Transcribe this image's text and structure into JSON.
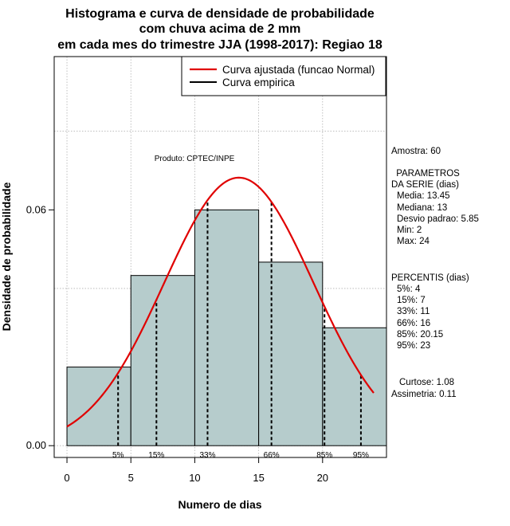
{
  "chart_data": {
    "type": "histogram",
    "title_lines": [
      "Histograma e curva de densidade de probabilidade",
      "com chuva acima de 2 mm",
      "em cada mes do trimestre JJA (1998-2017): Regiao 18"
    ],
    "xlabel": "Numero de dias",
    "ylabel": "Densidade de probabilidade",
    "xlim": [
      -1,
      25
    ],
    "ylim": [
      -0.003,
      0.099
    ],
    "x_ticks": [
      0,
      5,
      10,
      15,
      20
    ],
    "y_ticks": [
      0.0,
      0.06
    ],
    "y_tick_labels": [
      "0.00",
      "0.06"
    ],
    "grid_y": [
      0.0,
      0.04,
      0.08
    ],
    "grid_x": [
      0,
      5,
      10,
      15,
      20
    ],
    "bins": [
      {
        "x0": 0,
        "x1": 5,
        "density": 0.02
      },
      {
        "x0": 5,
        "x1": 10,
        "density": 0.0433
      },
      {
        "x0": 10,
        "x1": 15,
        "density": 0.06
      },
      {
        "x0": 15,
        "x1": 20,
        "density": 0.0467
      },
      {
        "x0": 20,
        "x1": 25,
        "density": 0.03
      }
    ],
    "bar_color": "#b6cccc",
    "normal_curve": {
      "mean": 13.45,
      "sd": 5.85,
      "x_range": [
        0,
        24
      ],
      "color": "#e00000"
    },
    "percentile_lines": [
      {
        "label": "5%",
        "value": 4
      },
      {
        "label": "15%",
        "value": 7
      },
      {
        "label": "33%",
        "value": 11
      },
      {
        "label": "66%",
        "value": 16
      },
      {
        "label": "85%",
        "value": 20.15
      },
      {
        "label": "95%",
        "value": 23
      }
    ],
    "legend": {
      "position": "top-right",
      "entries": [
        {
          "label": "Curva ajustada (funcao Normal)",
          "color": "#e00000"
        },
        {
          "label": "Curva empirica",
          "color": "#000000"
        }
      ]
    },
    "annotation": "Produto: CPTEC/INPE",
    "stats_lines": [
      "Amostra: 60",
      " PARAMETROS",
      "DA SERIE (dias)",
      "Media: 13.45",
      "Mediana: 13",
      "Desvio padrao: 5.85",
      "Min: 2",
      "Max: 24",
      "PERCENTIS (dias)",
      "5%: 4",
      "15%: 7",
      "33%: 11",
      "66%: 16",
      "85%: 20.15",
      "95%: 23",
      "Curtose: 1.08",
      "Assimetria: 0.11"
    ]
  }
}
